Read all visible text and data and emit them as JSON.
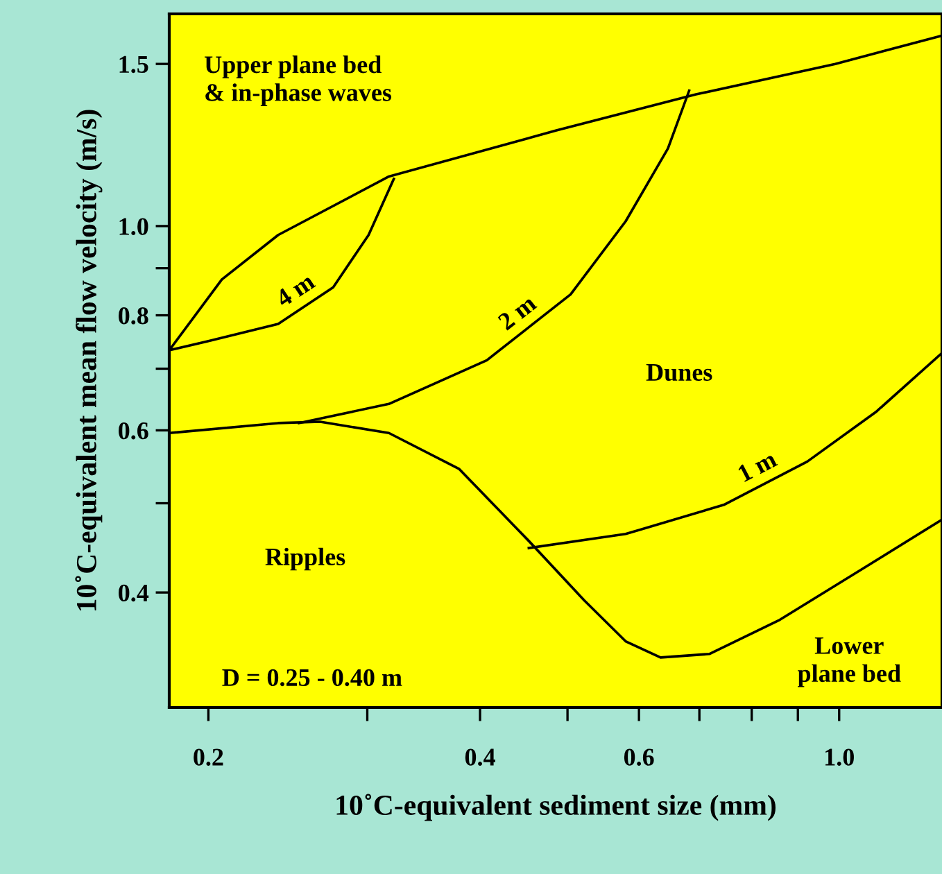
{
  "chart_data": {
    "type": "line",
    "xlabel": "10˚C-equivalent sediment size (mm)",
    "ylabel": "10˚C-equivalent mean flow velocity (m/s)",
    "log": "xy",
    "xlim": [
      0.181,
      1.3
    ],
    "ylim": [
      0.3,
      1.7
    ],
    "xticks": [
      0.2,
      {
        "value": 0.3,
        "label": null
      },
      0.4,
      {
        "value": 0.5,
        "label": null
      },
      0.6,
      {
        "value": 0.7,
        "label": null
      },
      {
        "value": 0.8,
        "label": null
      },
      {
        "value": 0.9,
        "label": null
      },
      {
        "value": 1.0,
        "label": "1.0"
      }
    ],
    "yticks": [
      0.4,
      {
        "value": 0.5,
        "label": null
      },
      0.6,
      {
        "value": 0.7,
        "label": null
      },
      0.8,
      {
        "value": 0.9,
        "label": null
      },
      {
        "value": 1.0,
        "label": "1.0"
      },
      1.5
    ],
    "grid": false,
    "legend": false,
    "marker": "none",
    "line_style": "solid",
    "series": [
      {
        "color": "#000000",
        "x": [
          0.181,
          0.207,
          0.239,
          0.317,
          0.486,
          0.694,
          0.99,
          1.3
        ],
        "values": [
          0.733,
          0.875,
          0.978,
          1.132,
          1.27,
          1.39,
          1.5,
          1.61
        ]
      },
      {
        "name": "4 m",
        "color": "#000000",
        "x": [
          0.181,
          0.2,
          0.239,
          0.275,
          0.301,
          0.321
        ],
        "values": [
          0.733,
          0.75,
          0.783,
          0.858,
          0.978,
          1.125
        ]
      },
      {
        "name": "2 m",
        "color": "#000000",
        "x": [
          0.252,
          0.317,
          0.407,
          0.504,
          0.58,
          0.646,
          0.682
        ],
        "values": [
          0.611,
          0.641,
          0.715,
          0.843,
          1.012,
          1.214,
          1.403
        ]
      },
      {
        "color": "#000000",
        "x": [
          0.181,
          0.239,
          0.266,
          0.317,
          0.379,
          0.453,
          0.522,
          0.58,
          0.634,
          0.718,
          0.857,
          1.06,
          1.3
        ],
        "values": [
          0.596,
          0.611,
          0.613,
          0.596,
          0.545,
          0.455,
          0.392,
          0.354,
          0.34,
          0.343,
          0.373,
          0.424,
          0.48
        ]
      },
      {
        "name": "1 m",
        "color": "#000000",
        "x": [
          0.453,
          0.58,
          0.745,
          0.922,
          1.1,
          1.3
        ],
        "values": [
          0.447,
          0.463,
          0.498,
          0.555,
          0.629,
          0.728
        ]
      }
    ],
    "annotations": [
      "Upper plane bed\n& in-phase waves",
      "Dunes",
      "Ripples",
      "Lower\nplane bed",
      "D = 0.25 - 0.40 m"
    ]
  }
}
